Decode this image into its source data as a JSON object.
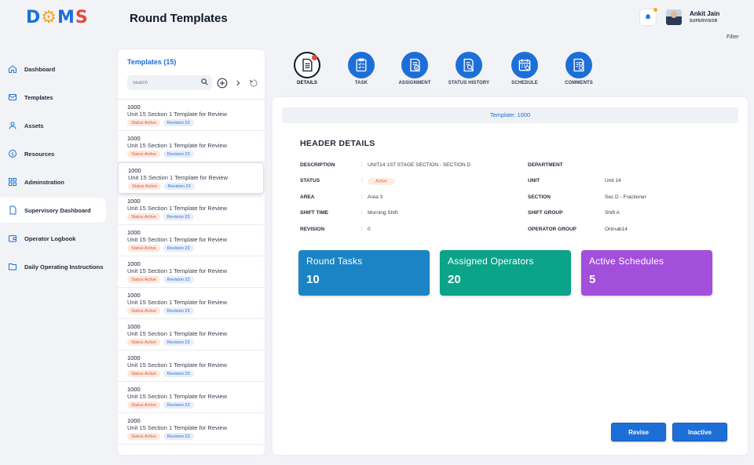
{
  "app": {
    "logo_text": "DOMS",
    "page_title": "Round Templates",
    "filter_label": "Filter"
  },
  "user": {
    "name": "Ankit Jain",
    "role": "SUPERVISOR"
  },
  "sidebar": {
    "items": [
      {
        "label": "Dashboard",
        "icon": "home-icon"
      },
      {
        "label": "Templates",
        "icon": "mail-icon"
      },
      {
        "label": "Assets",
        "icon": "person-icon"
      },
      {
        "label": "Resources",
        "icon": "dollar-icon"
      },
      {
        "label": "Adminstration",
        "icon": "grid-icon"
      },
      {
        "label": "Supervisory Dashboard",
        "icon": "document-icon",
        "active": true
      },
      {
        "label": "Operator Logbook",
        "icon": "wallet-icon"
      },
      {
        "label": "Daily Operating Instructions",
        "icon": "folder-icon"
      }
    ]
  },
  "templates_list": {
    "title": "Templates (15)",
    "search_placeholder": "Search",
    "rows": [
      {
        "id": "1000",
        "name": "Unit 15 Section 1 Template for Review",
        "status": "Status Active",
        "revision": "Revision 23"
      },
      {
        "id": "1000",
        "name": "Unit 15 Section 1 Template for Review",
        "status": "Status Active",
        "revision": "Revision 23"
      },
      {
        "id": "1000",
        "name": "Unit 15 Section 1 Template for Review",
        "status": "Status Active",
        "revision": "Revision 23"
      },
      {
        "id": "1000",
        "name": "Unit 15 Section 1 Template for Review",
        "status": "Status Active",
        "revision": "Revision 23"
      },
      {
        "id": "1000",
        "name": "Unit 15 Section 1 Template for Review",
        "status": "Status Active",
        "revision": "Revision 23"
      },
      {
        "id": "1000",
        "name": "Unit 15 Section 1 Template for Review",
        "status": "Status Active",
        "revision": "Revision 23"
      },
      {
        "id": "1000",
        "name": "Unit 15 Section 1 Template for Review",
        "status": "Status Active",
        "revision": "Revision 23"
      },
      {
        "id": "1000",
        "name": "Unit 15 Section 1 Template for Review",
        "status": "Status Active",
        "revision": "Revision 23"
      },
      {
        "id": "1000",
        "name": "Unit 15 Section 1 Template for Review",
        "status": "Status Active",
        "revision": "Revision 23"
      },
      {
        "id": "1000",
        "name": "Unit 15 Section 1 Template for Review",
        "status": "Status Active",
        "revision": "Revision 23"
      },
      {
        "id": "1000",
        "name": "Unit 15 Section 1 Template for Review",
        "status": "Status Active",
        "revision": "Revision 23"
      }
    ]
  },
  "tabs": [
    {
      "label": "DETAILS",
      "icon": "document-alert-icon",
      "active": true
    },
    {
      "label": "TASK",
      "icon": "clipboard-checklist-icon"
    },
    {
      "label": "ASSIGNMENT",
      "icon": "assignment-check-icon"
    },
    {
      "label": "STATUS HISTORY",
      "icon": "document-search-icon"
    },
    {
      "label": "SCHEDULE",
      "icon": "calendar-icon"
    },
    {
      "label": "COMMENTS",
      "icon": "comment-document-icon"
    }
  ],
  "details": {
    "template_bar": "Template: 1000",
    "header_title": "HEADER DETAILS",
    "left_fields": [
      {
        "key": "DESCRIPTION",
        "value": "UNIT14 1ST STAGE SECTION - SECTION D"
      },
      {
        "key": "STATUS",
        "value": "Active"
      },
      {
        "key": "AREA",
        "value": "Area 3"
      },
      {
        "key": "SHIFT TIME",
        "value": "Morning Shift"
      },
      {
        "key": "REVISION",
        "value": "0"
      }
    ],
    "right_fields": [
      {
        "key": "DEPARTMENT",
        "value": ""
      },
      {
        "key": "UNIT",
        "value": "Unit 14"
      },
      {
        "key": "SECTION",
        "value": "Sec D - Fractioner"
      },
      {
        "key": "SHIFT GROUP",
        "value": "Shift A"
      },
      {
        "key": "OPERATOR GROUP",
        "value": "Ortmab14"
      }
    ],
    "stats": [
      {
        "title": "Round Tasks",
        "value": "10",
        "color": "#1b84c4"
      },
      {
        "title": "Assigned Operators",
        "value": "20",
        "color": "#0ba38a"
      },
      {
        "title": "Active Schedules",
        "value": "5",
        "color": "#a24fdc"
      }
    ],
    "buttons": {
      "revise": "Revise",
      "inactive": "Inactive"
    }
  }
}
